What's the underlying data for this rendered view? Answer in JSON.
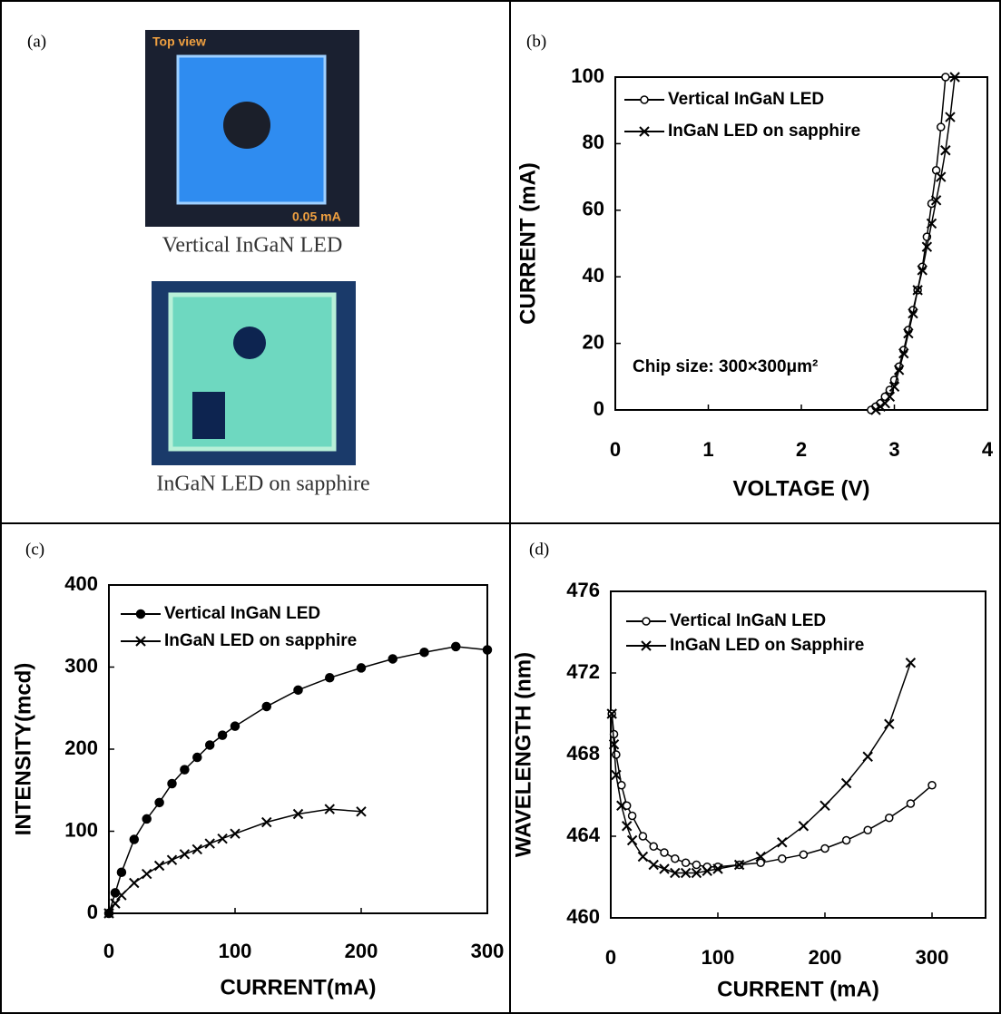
{
  "panel_a": {
    "label": "(a)",
    "image_text": "Top view",
    "image_current": "0.05 mA",
    "captions": [
      "Vertical InGaN LED",
      "InGaN LED on sapphire"
    ]
  },
  "chart_data": [
    {
      "type": "line",
      "label": "(b)",
      "x_label": "VOLTAGE (V)",
      "y_label": "CURRENT (mA)",
      "annotation": "Chip size: 300×300μm²",
      "xlim": [
        0,
        4
      ],
      "xticks": [
        0,
        1,
        2,
        3,
        4
      ],
      "ylim": [
        0,
        100
      ],
      "yticks": [
        0,
        20,
        40,
        60,
        80,
        100
      ],
      "legend": "top-left",
      "series": [
        {
          "name": "Vertical InGaN LED",
          "color": "#000000",
          "marker": "circle-open",
          "x": [
            2.75,
            2.8,
            2.85,
            2.9,
            2.95,
            3.0,
            3.05,
            3.1,
            3.15,
            3.2,
            3.25,
            3.3,
            3.35,
            3.4,
            3.45,
            3.5,
            3.55
          ],
          "values": [
            0,
            1,
            2,
            4,
            6,
            9,
            13,
            18,
            24,
            30,
            36,
            43,
            52,
            62,
            72,
            85,
            100
          ]
        },
        {
          "name": "InGaN LED on sapphire",
          "color": "#000000",
          "marker": "x",
          "x": [
            2.8,
            2.85,
            2.9,
            2.95,
            3.0,
            3.05,
            3.1,
            3.15,
            3.2,
            3.25,
            3.3,
            3.35,
            3.4,
            3.45,
            3.5,
            3.55,
            3.6,
            3.65
          ],
          "values": [
            0,
            1,
            2,
            4,
            7,
            12,
            17,
            23,
            29,
            36,
            42,
            49,
            56,
            63,
            70,
            78,
            88,
            100
          ]
        }
      ]
    },
    {
      "type": "line",
      "label": "(c)",
      "x_label": "CURRENT(mA)",
      "y_label": "INTENSITY(mcd)",
      "xlim": [
        0,
        300
      ],
      "xticks": [
        0,
        100,
        200,
        300
      ],
      "ylim": [
        0,
        400
      ],
      "yticks": [
        0,
        100,
        200,
        300,
        400
      ],
      "legend": "top-left",
      "series": [
        {
          "name": "Vertical InGaN LED",
          "color": "#000000",
          "marker": "circle-filled",
          "x": [
            0,
            5,
            10,
            20,
            30,
            40,
            50,
            60,
            70,
            80,
            90,
            100,
            125,
            150,
            175,
            200,
            225,
            250,
            275,
            300
          ],
          "values": [
            0,
            25,
            50,
            90,
            115,
            135,
            158,
            175,
            190,
            205,
            217,
            228,
            252,
            272,
            287,
            299,
            310,
            318,
            325,
            321
          ]
        },
        {
          "name": "InGaN LED on sapphire",
          "color": "#000000",
          "marker": "x",
          "x": [
            0,
            5,
            10,
            20,
            30,
            40,
            50,
            60,
            70,
            80,
            90,
            100,
            125,
            150,
            175,
            200
          ],
          "values": [
            0,
            12,
            22,
            37,
            48,
            58,
            65,
            72,
            78,
            85,
            91,
            97,
            111,
            121,
            127,
            124
          ]
        }
      ]
    },
    {
      "type": "line",
      "label": "(d)",
      "x_label": "CURRENT (mA)",
      "y_label": "WAVELENGTH (nm)",
      "xlim": [
        0,
        350
      ],
      "xticks": [
        0,
        100,
        200,
        300
      ],
      "ylim": [
        460,
        476
      ],
      "yticks": [
        460,
        464,
        468,
        472,
        476
      ],
      "legend": "top-left",
      "series": [
        {
          "name": "Vertical InGaN LED",
          "color": "#000000",
          "marker": "circle-open",
          "x": [
            1,
            3,
            5,
            10,
            15,
            20,
            30,
            40,
            50,
            60,
            70,
            80,
            90,
            100,
            120,
            140,
            160,
            180,
            200,
            220,
            240,
            260,
            280,
            300
          ],
          "values": [
            470,
            469,
            468,
            466.5,
            465.5,
            465,
            464,
            463.5,
            463.2,
            462.9,
            462.7,
            462.6,
            462.5,
            462.5,
            462.6,
            462.7,
            462.9,
            463.1,
            463.4,
            463.8,
            464.3,
            464.9,
            465.6,
            466.5
          ]
        },
        {
          "name": "InGaN LED on Sapphire",
          "color": "#000000",
          "marker": "x",
          "x": [
            1,
            3,
            5,
            10,
            15,
            20,
            30,
            40,
            50,
            60,
            70,
            80,
            90,
            100,
            120,
            140,
            160,
            180,
            200,
            220,
            240,
            260,
            280
          ],
          "values": [
            470,
            468.5,
            467,
            465.5,
            464.5,
            463.8,
            463,
            462.6,
            462.4,
            462.2,
            462.2,
            462.2,
            462.3,
            462.4,
            462.6,
            463,
            463.7,
            464.5,
            465.5,
            466.6,
            467.9,
            469.5,
            472.5
          ]
        }
      ]
    }
  ]
}
